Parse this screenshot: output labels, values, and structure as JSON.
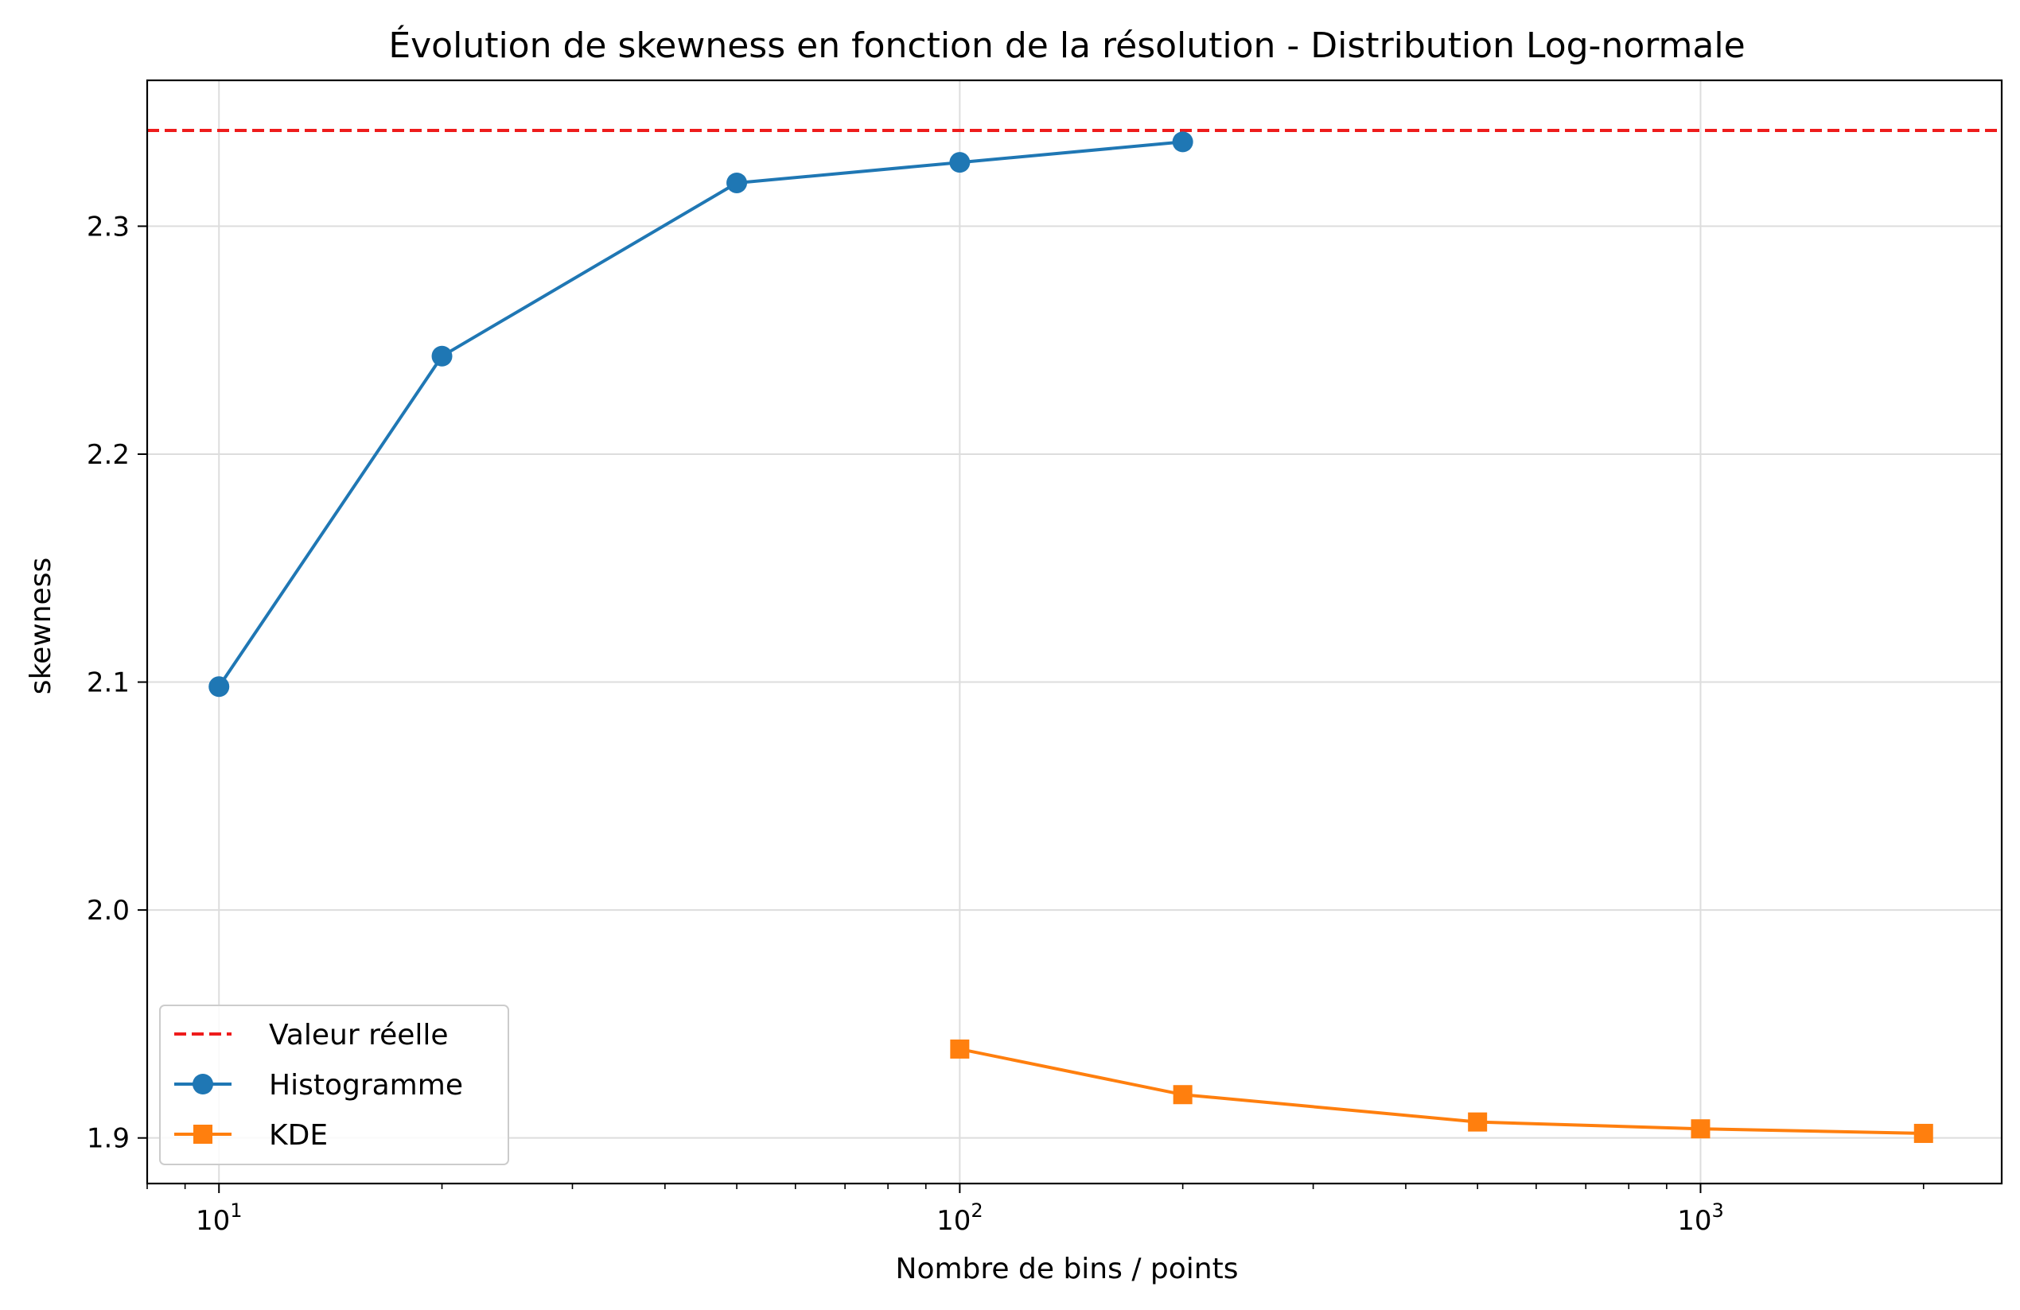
{
  "chart_data": {
    "type": "line",
    "title": "Évolution de skewness en fonction de la résolution - Distribution Log-normale",
    "xlabel": "Nombre de bins / points",
    "ylabel": "skewness",
    "xscale": "log",
    "xlim": [
      8.0,
      2550
    ],
    "ylim": [
      1.88,
      2.364
    ],
    "grid": true,
    "legend_position": "lower-left",
    "x_ticks": [
      {
        "value": 10,
        "base": "10",
        "exp": "1"
      },
      {
        "value": 100,
        "base": "10",
        "exp": "2"
      },
      {
        "value": 1000,
        "base": "10",
        "exp": "3"
      }
    ],
    "y_ticks": [
      {
        "value": 1.9,
        "label": "1.9"
      },
      {
        "value": 2.0,
        "label": "2.0"
      },
      {
        "value": 2.1,
        "label": "2.1"
      },
      {
        "value": 2.2,
        "label": "2.2"
      },
      {
        "value": 2.3,
        "label": "2.3"
      }
    ],
    "reference": {
      "name": "Valeur réelle",
      "value": 2.342,
      "color": "#ee1c1c",
      "style": "dashed"
    },
    "series": [
      {
        "name": "Histogramme",
        "color": "#1f77b4",
        "marker": "circle",
        "x": [
          10,
          20,
          50,
          100,
          200
        ],
        "y": [
          2.098,
          2.243,
          2.319,
          2.328,
          2.337
        ]
      },
      {
        "name": "KDE",
        "color": "#ff7f0e",
        "marker": "square",
        "x": [
          100,
          200,
          500,
          1000,
          2000
        ],
        "y": [
          1.939,
          1.919,
          1.907,
          1.904,
          1.902
        ]
      }
    ]
  }
}
